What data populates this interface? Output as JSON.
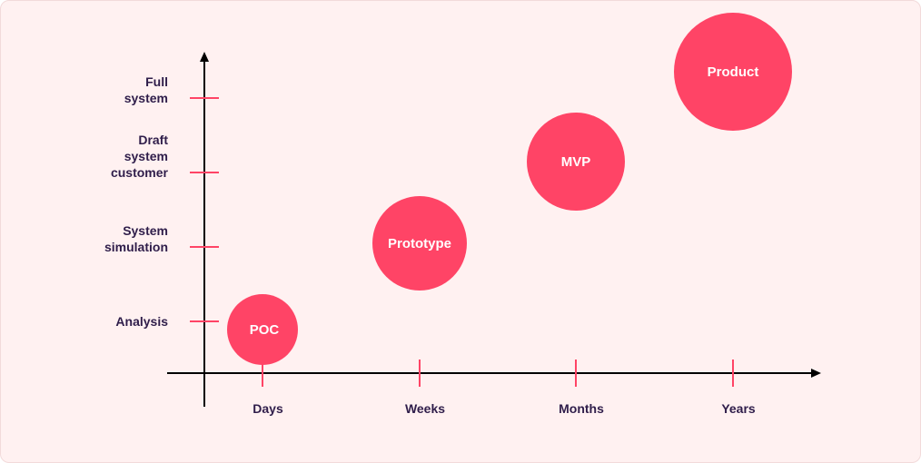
{
  "chart_data": {
    "type": "scatter",
    "x_categories": [
      "Days",
      "Weeks",
      "Months",
      "Years"
    ],
    "y_categories": [
      [
        "Analysis"
      ],
      [
        "System",
        "simulation"
      ],
      [
        "Draft",
        "system",
        "customer"
      ],
      [
        "Full",
        "system"
      ]
    ],
    "bubbles": [
      {
        "label": "POC",
        "x": "Days",
        "y": "Analysis",
        "size": 1
      },
      {
        "label": "Prototype",
        "x": "Weeks",
        "y": "System simulation",
        "size": 2
      },
      {
        "label": "MVP",
        "x": "Months",
        "y": "Draft system customer",
        "size": 3
      },
      {
        "label": "Product",
        "x": "Years",
        "y": "Full system",
        "size": 4
      }
    ],
    "grid": false,
    "legend": "none"
  },
  "colors": {
    "background": "#fff1f1",
    "accent": "#ff4466",
    "axis": "#000000",
    "text": "#2f1d4a"
  }
}
